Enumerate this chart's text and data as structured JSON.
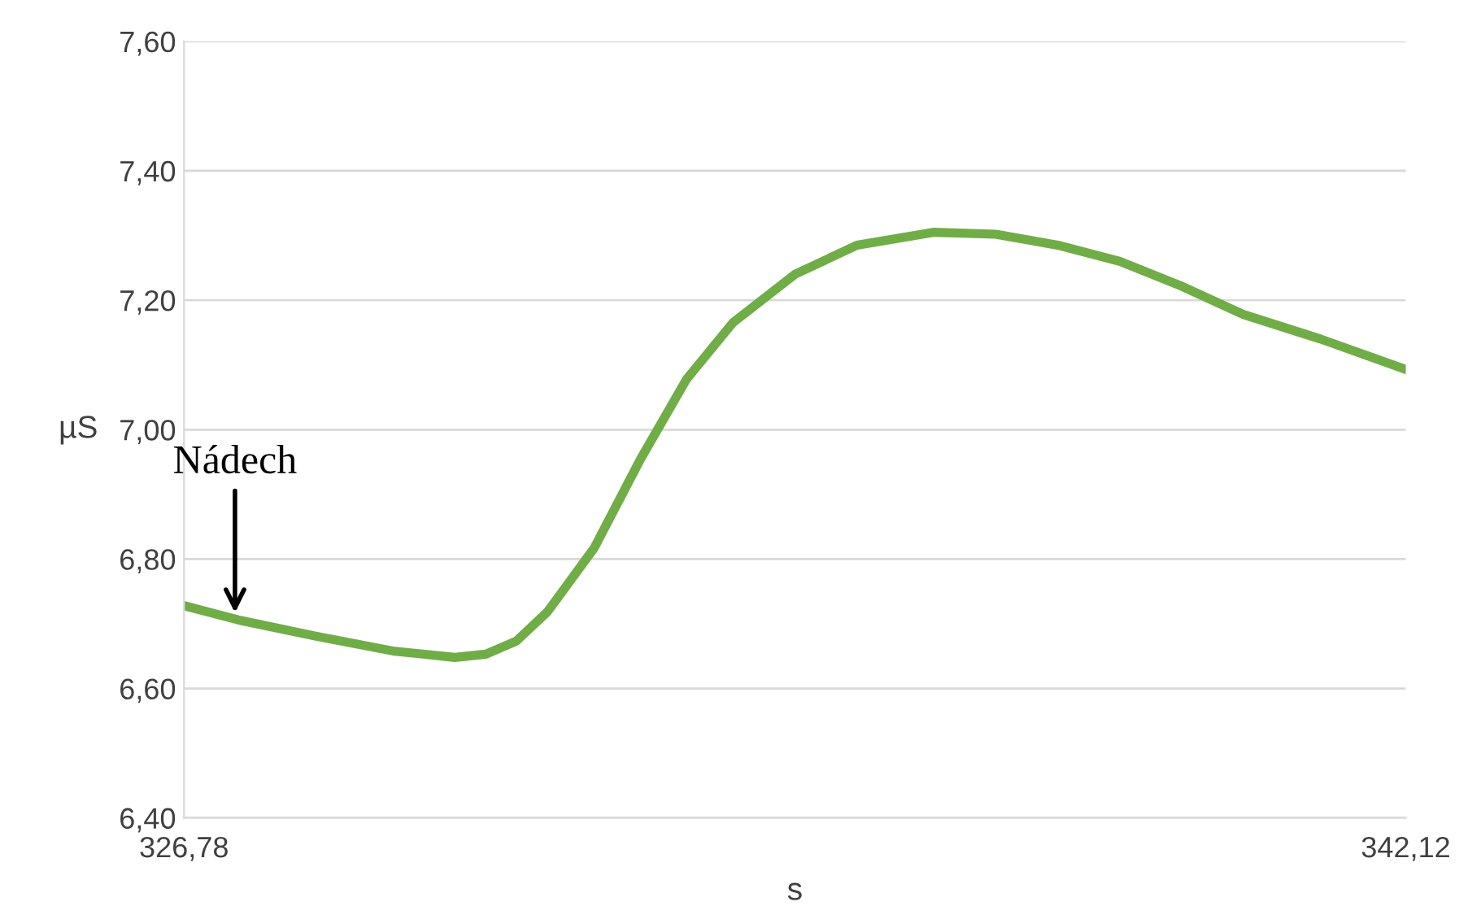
{
  "chart_data": {
    "type": "line",
    "xlabel": "s",
    "ylabel": "µS",
    "x": [
      326.78,
      327.46,
      328.43,
      329.4,
      330.18,
      330.57,
      330.95,
      331.34,
      331.93,
      332.51,
      333.09,
      333.67,
      334.45,
      335.23,
      336.2,
      336.97,
      337.75,
      338.53,
      339.3,
      340.08,
      341.05,
      342.12
    ],
    "series": [
      {
        "color": "#70ad47",
        "values": [
          6.728,
          6.706,
          6.681,
          6.658,
          6.648,
          6.653,
          6.673,
          6.718,
          6.817,
          6.954,
          7.078,
          7.165,
          7.24,
          7.285,
          7.305,
          7.302,
          7.285,
          7.26,
          7.222,
          7.178,
          7.14,
          7.093
        ]
      }
    ],
    "xlim": [
      326.78,
      342.12
    ],
    "xticks": [
      {
        "value": 326.78,
        "label": "326,78"
      },
      {
        "value": 342.12,
        "label": "342,12"
      }
    ],
    "ylim": [
      6.4,
      7.6
    ],
    "yticks": [
      {
        "value": 6.4,
        "label": "6,40"
      },
      {
        "value": 6.6,
        "label": "6,60"
      },
      {
        "value": 6.8,
        "label": "6,80"
      },
      {
        "value": 7.0,
        "label": "7,00"
      },
      {
        "value": 7.2,
        "label": "7,20"
      },
      {
        "value": 7.4,
        "label": "7,40"
      },
      {
        "value": 7.6,
        "label": "7,60"
      }
    ],
    "grid": "y",
    "marker": "none",
    "line_style": "solid",
    "legend": false,
    "annotations": [
      {
        "text": "Nádech",
        "x": 327.42,
        "y": 6.71
      }
    ]
  }
}
